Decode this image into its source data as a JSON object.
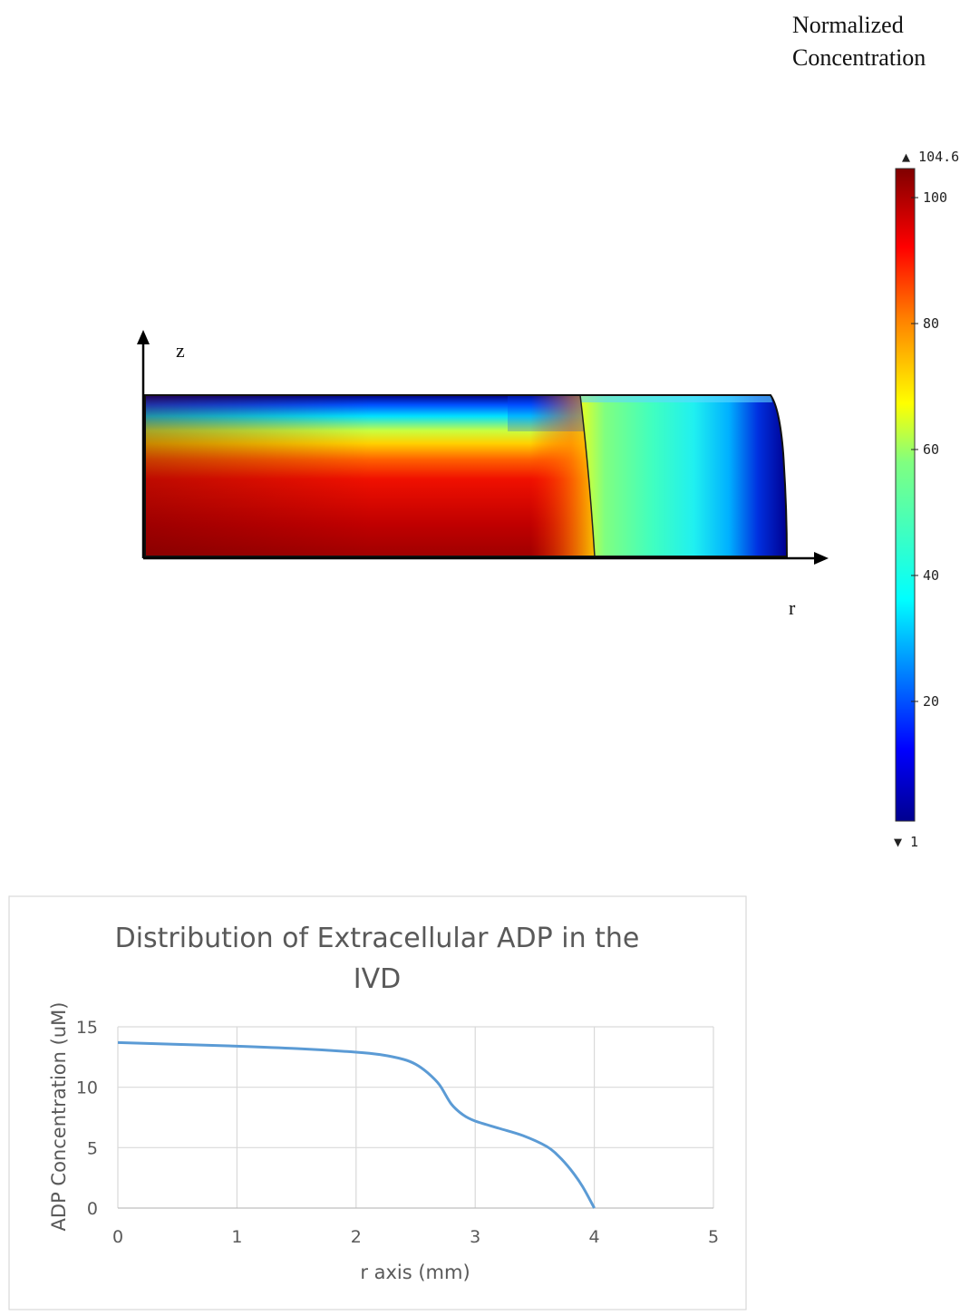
{
  "colormap_figure": {
    "colorbar_title_line1": "Normalized",
    "colorbar_title_line2": "Concentration",
    "max_label": "▲ 104.61",
    "min_label": "▼ 1",
    "z_axis_label": "z",
    "r_axis_label": "r"
  },
  "chart_data": [
    {
      "type": "heatmap",
      "color_scale": {
        "min": 1,
        "max": 104.61,
        "ticks": [
          20,
          40,
          60,
          80,
          100
        ],
        "colors": [
          "#00008f",
          "#0000ff",
          "#0080ff",
          "#00ffff",
          "#80ff80",
          "#ffff00",
          "#ff8000",
          "#ff0000",
          "#800000"
        ]
      }
    },
    {
      "type": "line",
      "title": "Distribution of Extracellular ADP in the IVD",
      "xlabel": "r axis (mm)",
      "ylabel": "ADP Concentration (uM)",
      "xlim": [
        0,
        5
      ],
      "ylim": [
        0,
        15
      ],
      "x_ticks": [
        "0",
        "1",
        "2",
        "3",
        "4",
        "5"
      ],
      "y_ticks": [
        "0",
        "5",
        "10",
        "15"
      ],
      "grid": true,
      "line_color": "#5b9bd5",
      "x": [
        0,
        0.5,
        1,
        1.5,
        2,
        2.2,
        2.4,
        2.5,
        2.6,
        2.7,
        2.8,
        2.9,
        3.0,
        3.2,
        3.4,
        3.6,
        3.7,
        3.8,
        3.9,
        4.0
      ],
      "y": [
        13.7,
        13.55,
        13.4,
        13.2,
        12.9,
        12.7,
        12.3,
        11.9,
        11.2,
        10.2,
        8.6,
        7.7,
        7.2,
        6.6,
        6.0,
        5.1,
        4.3,
        3.2,
        1.8,
        0.0
      ]
    }
  ]
}
